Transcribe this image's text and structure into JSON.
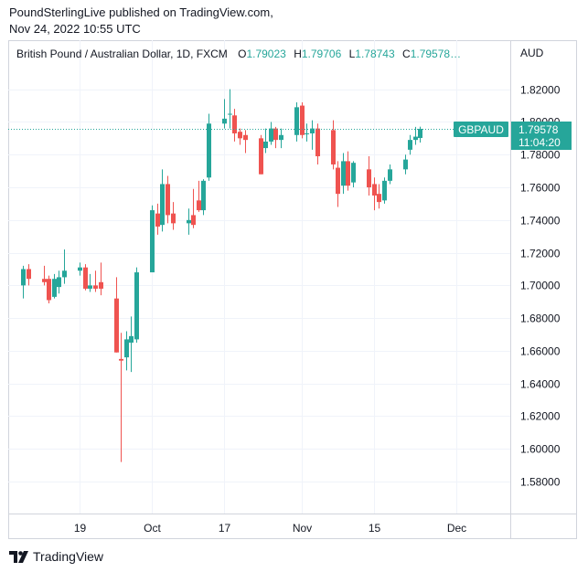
{
  "header": {
    "publisher_line": "PoundSterlingLive published on TradingView.com,",
    "date_line": "Nov 24, 2022 10:55 UTC"
  },
  "legend": {
    "symbol": "British Pound / Australian Dollar, 1D, FXCM",
    "o_label": "O",
    "o_value": "1.79023",
    "h_label": "H",
    "h_value": "1.79706",
    "l_label": "L",
    "l_value": "1.78743",
    "c_label": "C",
    "c_value": "1.79578…"
  },
  "price_tag": {
    "symbol": "GBPAUD",
    "price": "1.79578",
    "countdown": "11:04:20"
  },
  "footer": {
    "brand": "TradingView",
    "logo_icon": "tradingview-logo-icon"
  },
  "colors": {
    "up": "#26a69a",
    "down": "#ef5350",
    "grid": "#f0f3fa",
    "axis_text": "#131722"
  },
  "chart_data": {
    "type": "candlestick",
    "currency_label": "AUD",
    "ylim": [
      1.57,
      1.83
    ],
    "y_ticks": [
      "1.82000",
      "1.80000",
      "1.78000",
      "1.76000",
      "1.74000",
      "1.72000",
      "1.70000",
      "1.68000",
      "1.66000",
      "1.64000",
      "1.62000",
      "1.60000",
      "1.58000"
    ],
    "x_ticks": [
      {
        "label": "19",
        "date": "2022-09-19"
      },
      {
        "label": "Oct",
        "date": "2022-10-03"
      },
      {
        "label": "17",
        "date": "2022-10-17"
      },
      {
        "label": "Nov",
        "date": "2022-11-01"
      },
      {
        "label": "15",
        "date": "2022-11-15"
      },
      {
        "label": "Dec",
        "date": "2022-12-01"
      }
    ],
    "grid": true,
    "last_price_line": 1.79578,
    "candles": [
      {
        "date": "2022-09-08",
        "o": 1.7,
        "h": 1.712,
        "l": 1.692,
        "c": 1.71
      },
      {
        "date": "2022-09-09",
        "o": 1.71,
        "h": 1.713,
        "l": 1.7,
        "c": 1.704
      },
      {
        "date": "2022-09-12",
        "o": 1.704,
        "h": 1.712,
        "l": 1.7,
        "c": 1.702
      },
      {
        "date": "2022-09-13",
        "o": 1.704,
        "h": 1.706,
        "l": 1.689,
        "c": 1.691
      },
      {
        "date": "2022-09-14",
        "o": 1.693,
        "h": 1.707,
        "l": 1.692,
        "c": 1.704
      },
      {
        "date": "2022-09-15",
        "o": 1.699,
        "h": 1.709,
        "l": 1.695,
        "c": 1.705
      },
      {
        "date": "2022-09-16",
        "o": 1.705,
        "h": 1.722,
        "l": 1.701,
        "c": 1.709
      },
      {
        "date": "2022-09-19",
        "o": 1.709,
        "h": 1.714,
        "l": 1.706,
        "c": 1.711
      },
      {
        "date": "2022-09-20",
        "o": 1.711,
        "h": 1.713,
        "l": 1.697,
        "c": 1.698
      },
      {
        "date": "2022-09-21",
        "o": 1.698,
        "h": 1.707,
        "l": 1.696,
        "c": 1.7
      },
      {
        "date": "2022-09-22",
        "o": 1.7,
        "h": 1.709,
        "l": 1.696,
        "c": 1.698
      },
      {
        "date": "2022-09-23",
        "o": 1.702,
        "h": 1.714,
        "l": 1.694,
        "c": 1.698
      },
      {
        "date": "2022-09-26",
        "o": 1.692,
        "h": 1.705,
        "l": 1.659,
        "c": 1.659
      },
      {
        "date": "2022-09-27",
        "o": 1.655,
        "h": 1.671,
        "l": 1.592,
        "c": 1.654
      },
      {
        "date": "2022-09-28",
        "o": 1.656,
        "h": 1.672,
        "l": 1.648,
        "c": 1.667
      },
      {
        "date": "2022-09-29",
        "o": 1.665,
        "h": 1.681,
        "l": 1.647,
        "c": 1.669
      },
      {
        "date": "2022-09-30",
        "o": 1.667,
        "h": 1.711,
        "l": 1.665,
        "c": 1.708
      },
      {
        "date": "2022-10-03",
        "o": 1.708,
        "h": 1.749,
        "l": 1.708,
        "c": 1.746
      },
      {
        "date": "2022-10-04",
        "o": 1.744,
        "h": 1.75,
        "l": 1.731,
        "c": 1.736
      },
      {
        "date": "2022-10-05",
        "o": 1.737,
        "h": 1.771,
        "l": 1.733,
        "c": 1.762
      },
      {
        "date": "2022-10-06",
        "o": 1.762,
        "h": 1.767,
        "l": 1.738,
        "c": 1.743
      },
      {
        "date": "2022-10-07",
        "o": 1.744,
        "h": 1.751,
        "l": 1.734,
        "c": 1.738
      },
      {
        "date": "2022-10-10",
        "o": 1.738,
        "h": 1.747,
        "l": 1.731,
        "c": 1.74
      },
      {
        "date": "2022-10-11",
        "o": 1.743,
        "h": 1.759,
        "l": 1.735,
        "c": 1.737
      },
      {
        "date": "2022-10-12",
        "o": 1.752,
        "h": 1.764,
        "l": 1.745,
        "c": 1.746
      },
      {
        "date": "2022-10-13",
        "o": 1.746,
        "h": 1.765,
        "l": 1.743,
        "c": 1.764
      },
      {
        "date": "2022-10-14",
        "o": 1.766,
        "h": 1.805,
        "l": 1.764,
        "c": 1.799
      },
      {
        "date": "2022-10-17",
        "o": 1.799,
        "h": 1.814,
        "l": 1.796,
        "c": 1.802
      },
      {
        "date": "2022-10-18",
        "o": 1.805,
        "h": 1.82,
        "l": 1.796,
        "c": 1.805
      },
      {
        "date": "2022-10-19",
        "o": 1.804,
        "h": 1.808,
        "l": 1.788,
        "c": 1.793
      },
      {
        "date": "2022-10-20",
        "o": 1.794,
        "h": 1.796,
        "l": 1.786,
        "c": 1.79
      },
      {
        "date": "2022-10-21",
        "o": 1.792,
        "h": 1.795,
        "l": 1.781,
        "c": 1.789
      },
      {
        "date": "2022-10-24",
        "o": 1.79,
        "h": 1.792,
        "l": 1.768,
        "c": 1.768
      },
      {
        "date": "2022-10-25",
        "o": 1.784,
        "h": 1.796,
        "l": 1.781,
        "c": 1.788
      },
      {
        "date": "2022-10-26",
        "o": 1.788,
        "h": 1.8,
        "l": 1.786,
        "c": 1.796
      },
      {
        "date": "2022-10-27",
        "o": 1.796,
        "h": 1.797,
        "l": 1.784,
        "c": 1.789
      },
      {
        "date": "2022-10-28",
        "o": 1.789,
        "h": 1.796,
        "l": 1.784,
        "c": 1.792
      },
      {
        "date": "2022-10-31",
        "o": 1.792,
        "h": 1.812,
        "l": 1.788,
        "c": 1.809
      },
      {
        "date": "2022-11-01",
        "o": 1.81,
        "h": 1.812,
        "l": 1.79,
        "c": 1.792
      },
      {
        "date": "2022-11-02",
        "o": 1.793,
        "h": 1.799,
        "l": 1.788,
        "c": 1.793
      },
      {
        "date": "2022-11-03",
        "o": 1.793,
        "h": 1.801,
        "l": 1.783,
        "c": 1.796
      },
      {
        "date": "2022-11-04",
        "o": 1.796,
        "h": 1.799,
        "l": 1.774,
        "c": 1.779
      },
      {
        "date": "2022-11-07",
        "o": 1.795,
        "h": 1.801,
        "l": 1.771,
        "c": 1.774
      },
      {
        "date": "2022-11-08",
        "o": 1.772,
        "h": 1.776,
        "l": 1.748,
        "c": 1.756
      },
      {
        "date": "2022-11-09",
        "o": 1.761,
        "h": 1.781,
        "l": 1.756,
        "c": 1.776
      },
      {
        "date": "2022-11-10",
        "o": 1.776,
        "h": 1.782,
        "l": 1.758,
        "c": 1.761
      },
      {
        "date": "2022-11-11",
        "o": 1.763,
        "h": 1.776,
        "l": 1.76,
        "c": 1.775
      },
      {
        "date": "2022-11-14",
        "o": 1.771,
        "h": 1.779,
        "l": 1.755,
        "c": 1.76
      },
      {
        "date": "2022-11-15",
        "o": 1.762,
        "h": 1.766,
        "l": 1.746,
        "c": 1.755
      },
      {
        "date": "2022-11-16",
        "o": 1.756,
        "h": 1.762,
        "l": 1.747,
        "c": 1.751
      },
      {
        "date": "2022-11-17",
        "o": 1.752,
        "h": 1.766,
        "l": 1.75,
        "c": 1.764
      },
      {
        "date": "2022-11-18",
        "o": 1.764,
        "h": 1.774,
        "l": 1.762,
        "c": 1.771
      },
      {
        "date": "2022-11-21",
        "o": 1.771,
        "h": 1.78,
        "l": 1.768,
        "c": 1.777
      },
      {
        "date": "2022-11-22",
        "o": 1.783,
        "h": 1.792,
        "l": 1.78,
        "c": 1.789
      },
      {
        "date": "2022-11-23",
        "o": 1.789,
        "h": 1.797,
        "l": 1.786,
        "c": 1.791
      },
      {
        "date": "2022-11-24",
        "o": 1.7902,
        "h": 1.7971,
        "l": 1.7874,
        "c": 1.7958
      }
    ]
  }
}
